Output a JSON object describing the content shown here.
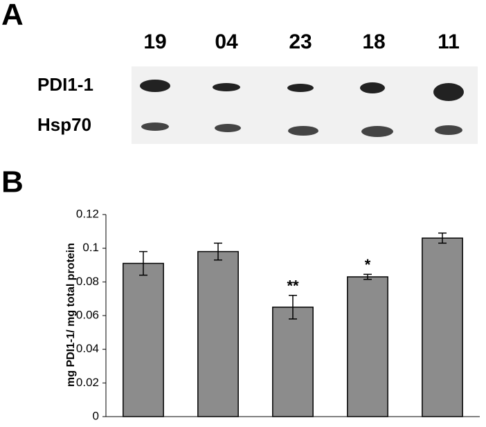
{
  "panel_a": {
    "label": "A",
    "lanes": [
      "19",
      "04",
      "23",
      "18",
      "11"
    ],
    "rows": [
      "PDI1-1",
      "Hsp70"
    ]
  },
  "chart_data": {
    "type": "bar",
    "panel_label": "B",
    "y_label": "mg PDI1-1/ mg total protein",
    "categories": [
      null,
      null,
      null,
      null,
      null
    ],
    "values": [
      0.091,
      0.098,
      0.065,
      0.083,
      0.106
    ],
    "errors": [
      0.007,
      0.005,
      0.007,
      0.0015,
      0.003
    ],
    "significance": [
      null,
      null,
      "**",
      "*",
      null
    ],
    "color": "#8c8c8c",
    "ylim": [
      0,
      0.12
    ],
    "yticks": [
      0,
      0.02,
      0.04,
      0.06,
      0.08,
      0.1,
      0.12
    ],
    "grid": false
  }
}
